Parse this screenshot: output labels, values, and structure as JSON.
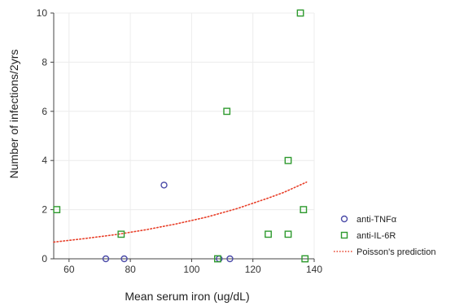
{
  "colors": {
    "anti_tnf": "#4b4ba8",
    "anti_il6r": "#2e9a2e",
    "poisson": "#e8402a",
    "grid": "#ececec",
    "axis": "#444444"
  },
  "chart_data": {
    "type": "scatter",
    "xlabel": "Mean serum iron (ug/dL)",
    "ylabel": "Number of infections/2yrs",
    "xlim": [
      55,
      140
    ],
    "ylim": [
      0,
      10
    ],
    "x_ticks": [
      "60",
      "80",
      "100",
      "120",
      "140"
    ],
    "y_ticks": [
      "0",
      "2",
      "4",
      "6",
      "8",
      "10"
    ],
    "grid": true,
    "legend_position": "right",
    "series": [
      {
        "name": "anti-TNFα",
        "marker": "circle",
        "points": [
          {
            "x": 72,
            "y": 0
          },
          {
            "x": 78,
            "y": 0
          },
          {
            "x": 91,
            "y": 3
          },
          {
            "x": 109,
            "y": 0
          },
          {
            "x": 112.5,
            "y": 0
          }
        ]
      },
      {
        "name": "anti-IL-6R",
        "marker": "square",
        "points": [
          {
            "x": 56,
            "y": 2
          },
          {
            "x": 77,
            "y": 1
          },
          {
            "x": 108.5,
            "y": 0
          },
          {
            "x": 111.5,
            "y": 6
          },
          {
            "x": 125,
            "y": 1
          },
          {
            "x": 131.5,
            "y": 4
          },
          {
            "x": 131.5,
            "y": 1
          },
          {
            "x": 135.5,
            "y": 10
          },
          {
            "x": 136.5,
            "y": 2
          },
          {
            "x": 137,
            "y": 0
          }
        ]
      },
      {
        "name": "Poisson's prediction",
        "type": "line",
        "style": "dotted",
        "points": [
          {
            "x": 55,
            "y": 0.68
          },
          {
            "x": 65,
            "y": 0.82
          },
          {
            "x": 75,
            "y": 0.98
          },
          {
            "x": 85,
            "y": 1.18
          },
          {
            "x": 95,
            "y": 1.42
          },
          {
            "x": 105,
            "y": 1.7
          },
          {
            "x": 115,
            "y": 2.05
          },
          {
            "x": 125,
            "y": 2.47
          },
          {
            "x": 130,
            "y": 2.7
          },
          {
            "x": 137.5,
            "y": 3.12
          }
        ]
      }
    ]
  }
}
